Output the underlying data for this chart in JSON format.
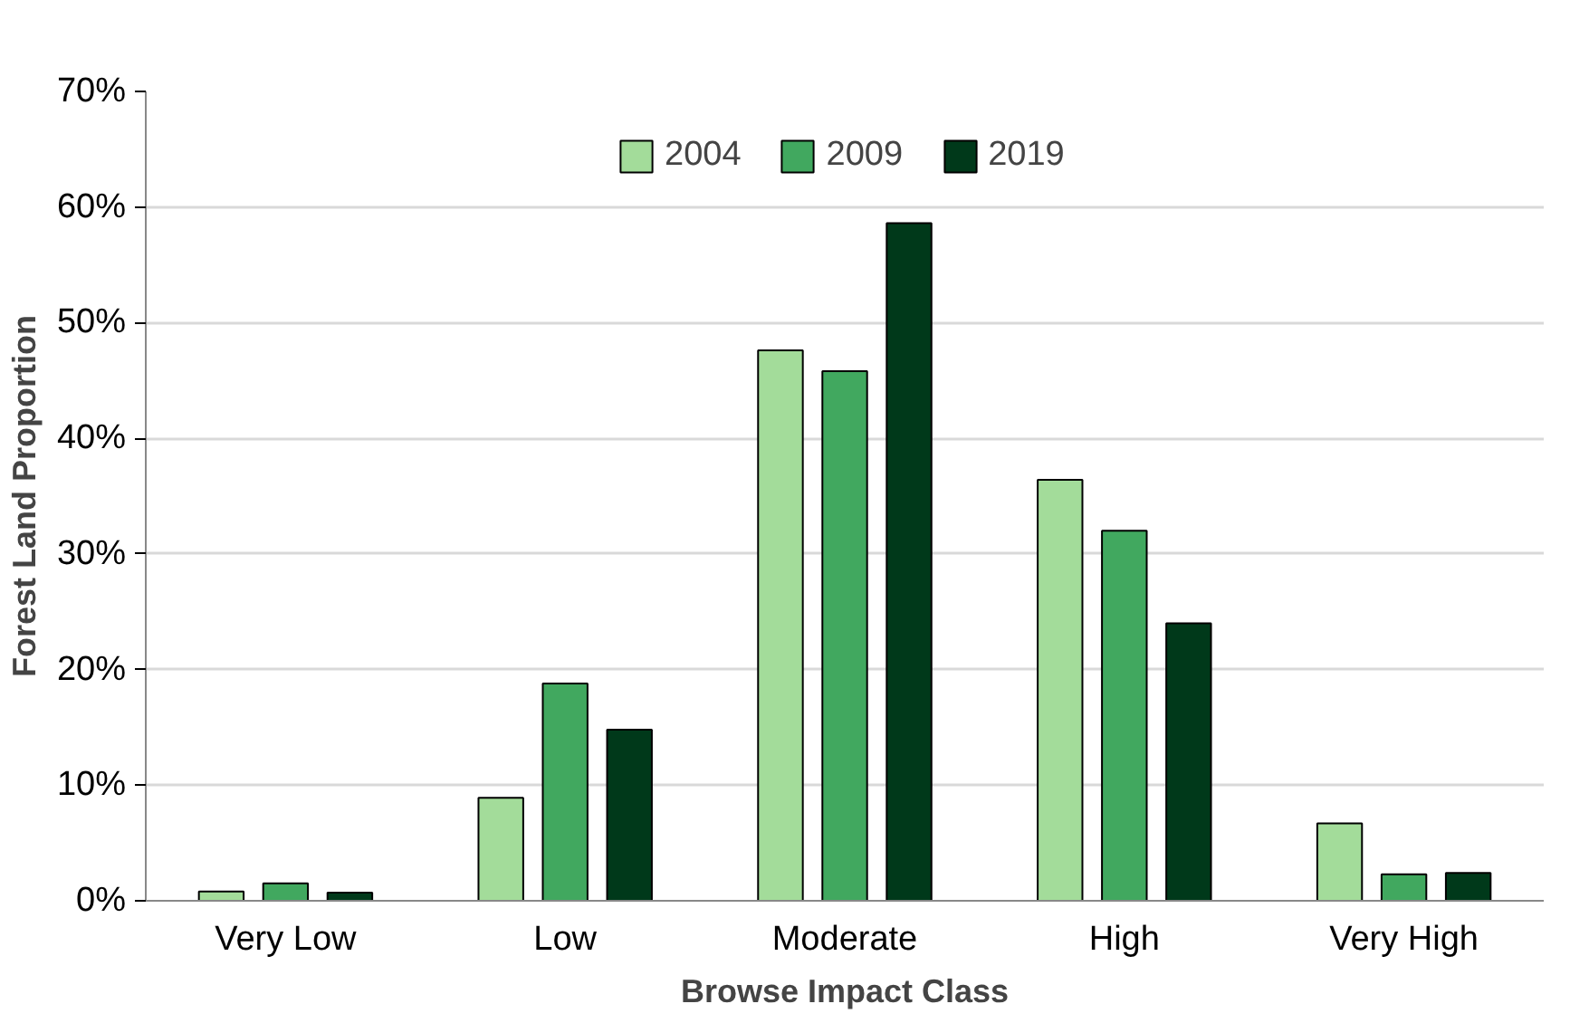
{
  "chart_data": {
    "type": "bar",
    "xlabel": "Browse Impact Class",
    "ylabel": "Forest Land Proportion",
    "categories": [
      "Very Low",
      "Low",
      "Moderate",
      "High",
      "Very High"
    ],
    "series": [
      {
        "name": "2004",
        "color": "#a3dc9a",
        "values": [
          0.8,
          8.9,
          47.6,
          36.4,
          6.7
        ]
      },
      {
        "name": "2009",
        "color": "#41a85f",
        "values": [
          1.5,
          18.8,
          45.8,
          32.0,
          2.3
        ]
      },
      {
        "name": "2019",
        "color": "#00391a",
        "values": [
          0.7,
          14.8,
          58.6,
          24.0,
          2.4
        ]
      }
    ],
    "ylim": [
      0,
      70
    ],
    "yticks": [
      {
        "value": 0,
        "label": "0%"
      },
      {
        "value": 10,
        "label": "10%"
      },
      {
        "value": 20,
        "label": "20%"
      },
      {
        "value": 30,
        "label": "30%"
      },
      {
        "value": 40,
        "label": "40%"
      },
      {
        "value": 50,
        "label": "50%"
      },
      {
        "value": 60,
        "label": "60%"
      },
      {
        "value": 70,
        "label": "70%"
      }
    ],
    "grid": "y",
    "legend": "top"
  }
}
